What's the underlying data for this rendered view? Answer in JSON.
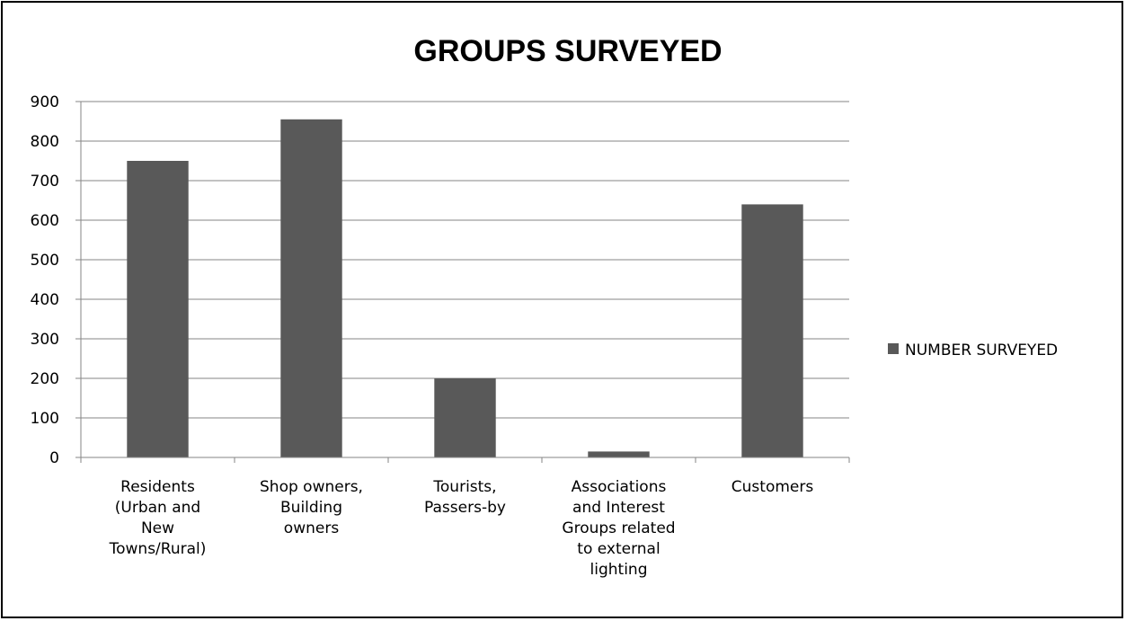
{
  "chart_data": {
    "type": "bar",
    "title": "GROUPS SURVEYED",
    "xlabel": "",
    "ylabel": "",
    "ylim": [
      0,
      900
    ],
    "yticks": [
      0,
      100,
      200,
      300,
      400,
      500,
      600,
      700,
      800,
      900
    ],
    "grid": true,
    "legend_position": "right",
    "categories": [
      [
        "Residents",
        "(Urban and",
        "New",
        "Towns/Rural)"
      ],
      [
        "Shop owners,",
        "Building",
        "owners"
      ],
      [
        "Tourists,",
        "Passers-by"
      ],
      [
        "Associations",
        "and Interest",
        "Groups related",
        "to external",
        "lighting"
      ],
      [
        "Customers"
      ]
    ],
    "series": [
      {
        "name": "NUMBER SURVEYED",
        "values": [
          750,
          855,
          200,
          15,
          640
        ],
        "color": "#595959"
      }
    ]
  }
}
